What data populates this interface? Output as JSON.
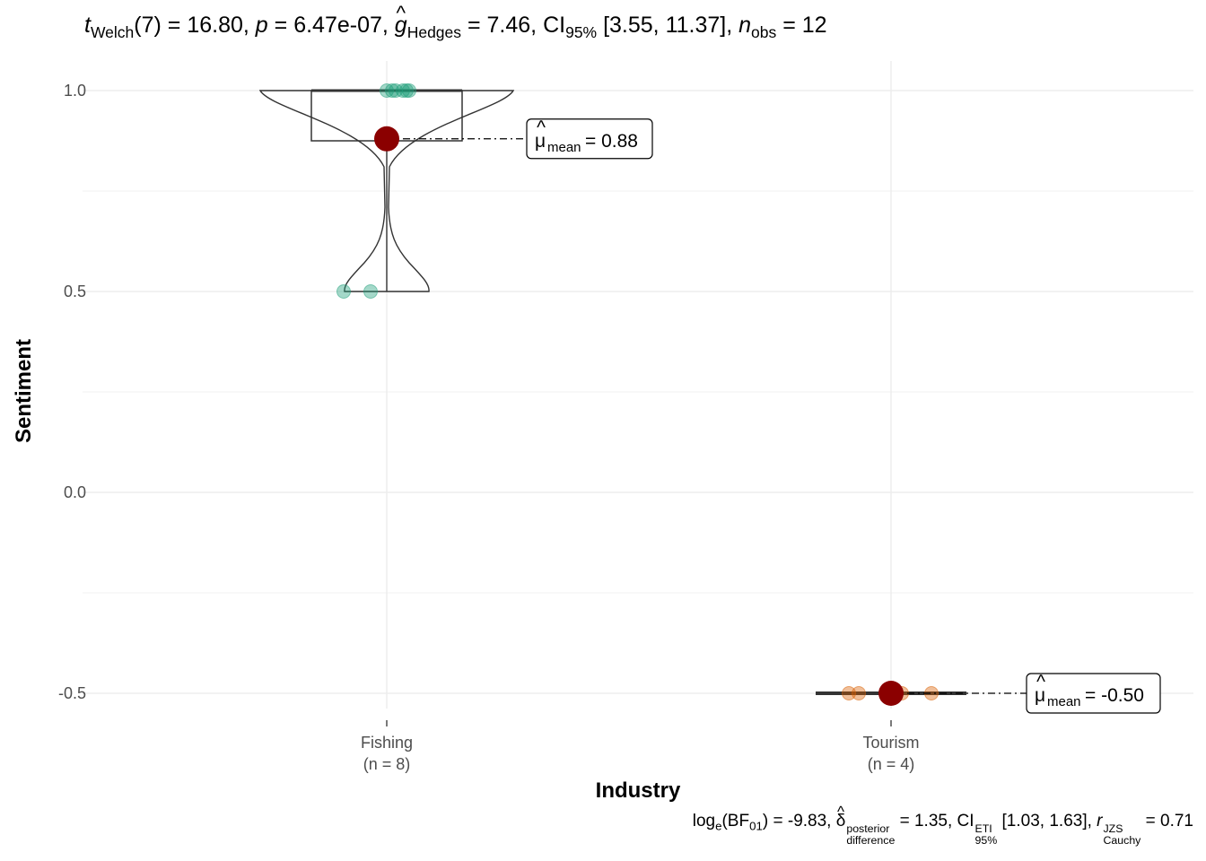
{
  "subtitle": {
    "t_sym": "t",
    "t_sub": "Welch",
    "df": "(7)",
    "t_val": "= 16.80,",
    "p_sym": "p",
    "p_val": "= 6.47e-07,",
    "g_sym": "g",
    "g_sub": "Hedges",
    "g_val": "= 7.46,",
    "ci_sym": "CI",
    "ci_sub": "95%",
    "ci_val": "[3.55, 11.37],",
    "n_sym": "n",
    "n_sub": "obs",
    "n_val": "= 12"
  },
  "caption": {
    "log_txt": "log",
    "log_sub": "e",
    "bf_txt": "(BF",
    "bf_sub": "01",
    "bf_val": ") = -9.83,",
    "delta_sym": "δ",
    "delta_sup": "posterior",
    "delta_sub": "difference",
    "delta_val": "= 1.35,",
    "ci_sym": "CI",
    "ci_sup": "ETI",
    "ci_sub": "95%",
    "ci_val": "[1.03, 1.63],",
    "r_sym": "r",
    "r_sup": "JZS",
    "r_sub": "Cauchy",
    "r_val": "= 0.71"
  },
  "chart_data": {
    "type": "violin-box-scatter",
    "xlabel": "Industry",
    "ylabel": "Sentiment",
    "ylim": [
      -0.5,
      1.0
    ],
    "y_ticks": [
      -0.5,
      0.0,
      0.5,
      1.0
    ],
    "y_tick_labels": [
      "-0.5",
      "0.0",
      "0.5",
      "1.0"
    ],
    "grid": true,
    "groups": [
      {
        "name": "Fishing",
        "n_label": "(n = 8)",
        "color": "#1B9E77",
        "points": [
          1.0,
          1.0,
          1.0,
          1.0,
          1.0,
          1.0,
          0.5,
          0.5
        ],
        "mean": 0.88,
        "mean_label": "= 0.88",
        "box": {
          "q1": 0.875,
          "median": 1.0,
          "q3": 1.0
        }
      },
      {
        "name": "Tourism",
        "n_label": "(n = 4)",
        "color": "#D95F02",
        "points": [
          -0.5,
          -0.5,
          -0.5,
          -0.5
        ],
        "mean": -0.5,
        "mean_label": "= -0.50",
        "box": {
          "q1": -0.5,
          "median": -0.5,
          "q3": -0.5
        }
      }
    ],
    "mean_point_color": "#8B0000",
    "mean_symbol": "μ",
    "mean_subscript": "mean"
  }
}
